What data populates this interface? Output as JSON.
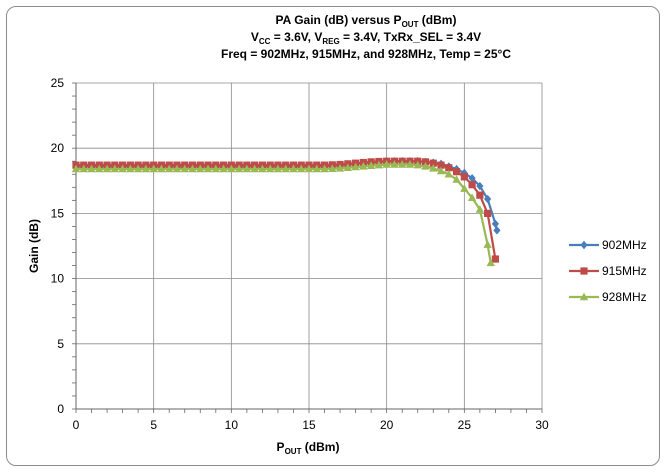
{
  "chart_data": {
    "type": "line",
    "title_line1": "PA Gain (dB) versus P",
    "title_line1_sub": "OUT",
    "title_line1_tail": " (dBm)",
    "title_line2_parts": [
      "V",
      "CC",
      " = 3.6V, V",
      "REG",
      " = 3.4V, TxRx_SEL = 3.4V"
    ],
    "title_line3": "Freq = 902MHz, 915MHz, and 928MHz, Temp = 25°C",
    "xlabel": "P",
    "xlabel_sub": "OUT",
    "xlabel_tail": " (dBm)",
    "ylabel": "Gain (dB)",
    "xlim": [
      0,
      30
    ],
    "ylim": [
      0,
      25
    ],
    "xticks": [
      "0",
      "5",
      "10",
      "15",
      "20",
      "25",
      "30"
    ],
    "yticks": [
      "0",
      "5",
      "10",
      "15",
      "20",
      "25"
    ],
    "grid": true,
    "legend_position": "right",
    "series": [
      {
        "name": "902MHz",
        "color": "#4a7ebb",
        "marker": "diamond",
        "x": [
          0,
          0.5,
          1,
          1.5,
          2,
          2.5,
          3,
          3.5,
          4,
          4.5,
          5,
          5.5,
          6,
          6.5,
          7,
          7.5,
          8,
          8.5,
          9,
          9.5,
          10,
          10.5,
          11,
          11.5,
          12,
          12.5,
          13,
          13.5,
          14,
          14.5,
          15,
          15.5,
          16,
          16.5,
          17,
          17.5,
          18,
          18.5,
          19,
          19.5,
          20,
          20.5,
          21,
          21.5,
          22,
          22.5,
          23,
          23.5,
          24,
          24.5,
          25,
          25.5,
          26,
          26.5,
          27,
          27.1
        ],
        "y": [
          18.6,
          18.6,
          18.6,
          18.6,
          18.6,
          18.6,
          18.6,
          18.6,
          18.6,
          18.6,
          18.6,
          18.6,
          18.6,
          18.6,
          18.6,
          18.6,
          18.6,
          18.6,
          18.6,
          18.6,
          18.6,
          18.6,
          18.6,
          18.6,
          18.6,
          18.6,
          18.6,
          18.6,
          18.6,
          18.6,
          18.6,
          18.6,
          18.6,
          18.65,
          18.7,
          18.75,
          18.8,
          18.85,
          18.9,
          18.95,
          19.0,
          19.0,
          19.0,
          19.0,
          19.0,
          18.95,
          18.9,
          18.8,
          18.6,
          18.4,
          18.1,
          17.7,
          17.1,
          16.1,
          14.2,
          13.7
        ]
      },
      {
        "name": "915MHz",
        "color": "#be4b48",
        "marker": "square",
        "x": [
          0,
          0.5,
          1,
          1.5,
          2,
          2.5,
          3,
          3.5,
          4,
          4.5,
          5,
          5.5,
          6,
          6.5,
          7,
          7.5,
          8,
          8.5,
          9,
          9.5,
          10,
          10.5,
          11,
          11.5,
          12,
          12.5,
          13,
          13.5,
          14,
          14.5,
          15,
          15.5,
          16,
          16.5,
          17,
          17.5,
          18,
          18.5,
          19,
          19.5,
          20,
          20.5,
          21,
          21.5,
          22,
          22.5,
          23,
          23.5,
          24,
          24.5,
          25,
          25.5,
          26,
          26.5,
          27
        ],
        "y": [
          18.7,
          18.7,
          18.7,
          18.7,
          18.7,
          18.7,
          18.7,
          18.7,
          18.7,
          18.7,
          18.7,
          18.7,
          18.7,
          18.7,
          18.7,
          18.7,
          18.7,
          18.7,
          18.7,
          18.7,
          18.7,
          18.7,
          18.7,
          18.7,
          18.7,
          18.7,
          18.7,
          18.7,
          18.7,
          18.7,
          18.7,
          18.7,
          18.7,
          18.72,
          18.75,
          18.8,
          18.85,
          18.9,
          18.95,
          18.98,
          19.0,
          19.0,
          19.0,
          19.0,
          19.0,
          18.95,
          18.85,
          18.7,
          18.5,
          18.2,
          17.8,
          17.2,
          16.4,
          15.0,
          11.5
        ]
      },
      {
        "name": "928MHz",
        "color": "#98b954",
        "marker": "triangle",
        "x": [
          0,
          0.5,
          1,
          1.5,
          2,
          2.5,
          3,
          3.5,
          4,
          4.5,
          5,
          5.5,
          6,
          6.5,
          7,
          7.5,
          8,
          8.5,
          9,
          9.5,
          10,
          10.5,
          11,
          11.5,
          12,
          12.5,
          13,
          13.5,
          14,
          14.5,
          15,
          15.5,
          16,
          16.5,
          17,
          17.5,
          18,
          18.5,
          19,
          19.5,
          20,
          20.5,
          21,
          21.5,
          22,
          22.5,
          23,
          23.5,
          24,
          24.5,
          25,
          25.5,
          26,
          26.5,
          26.7
        ],
        "y": [
          18.4,
          18.4,
          18.4,
          18.4,
          18.4,
          18.4,
          18.4,
          18.4,
          18.4,
          18.4,
          18.4,
          18.4,
          18.4,
          18.4,
          18.4,
          18.4,
          18.4,
          18.4,
          18.4,
          18.4,
          18.4,
          18.4,
          18.4,
          18.4,
          18.4,
          18.4,
          18.4,
          18.4,
          18.4,
          18.4,
          18.4,
          18.4,
          18.4,
          18.42,
          18.45,
          18.5,
          18.55,
          18.6,
          18.65,
          18.7,
          18.75,
          18.75,
          18.75,
          18.75,
          18.7,
          18.6,
          18.45,
          18.25,
          18.0,
          17.6,
          16.9,
          16.2,
          15.3,
          12.6,
          11.2
        ]
      }
    ]
  }
}
